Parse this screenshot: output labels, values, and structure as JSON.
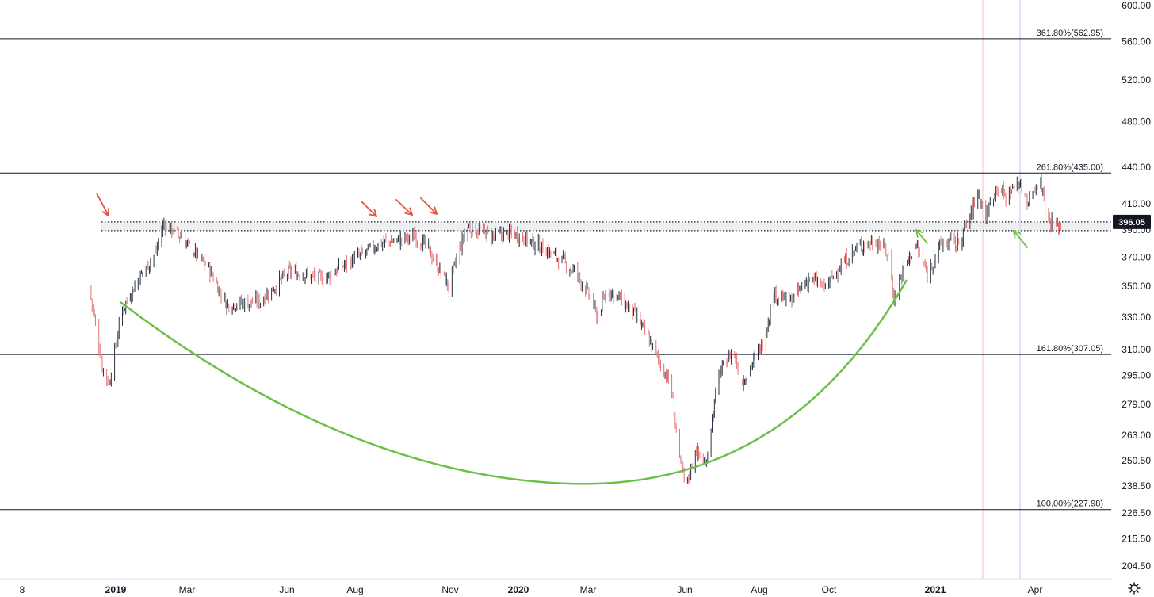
{
  "chart_data": {
    "type": "candlestick",
    "y_axis": {
      "ticks": [
        600.0,
        560.0,
        520.0,
        480.0,
        440.0,
        410.0,
        390.0,
        370.0,
        350.0,
        330.0,
        310.0,
        295.0,
        279.0,
        263.0,
        250.5,
        238.5,
        226.5,
        215.5,
        204.5
      ],
      "tick_labels": [
        "600.00",
        "560.00",
        "520.00",
        "480.00",
        "440.00",
        "410.00",
        "390.00",
        "370.00",
        "350.00",
        "330.00",
        "310.00",
        "295.00",
        "279.00",
        "263.00",
        "250.50",
        "238.50",
        "226.50",
        "215.50",
        "204.50"
      ],
      "scale": "log"
    },
    "x_axis": {
      "tick_labels": [
        "8",
        "2019",
        "Mar",
        "Jun",
        "Aug",
        "Nov",
        "2020",
        "Mar",
        "Jun",
        "Aug",
        "Oct",
        "2021",
        "Apr"
      ],
      "bold_labels": [
        "2019",
        "2020",
        "2021"
      ]
    },
    "fib_levels": [
      {
        "label": "361.80%(562.95)",
        "price": 562.95
      },
      {
        "label": "261.80%(435.00)",
        "price": 435.0
      },
      {
        "label": "161.80%(307.05)",
        "price": 307.05
      },
      {
        "label": "100.00%(227.98)",
        "price": 227.98
      }
    ],
    "resistance_zone": {
      "upper": 396.05,
      "lower": 389.5
    },
    "last_price": {
      "value": 396.05,
      "label": "396.05",
      "color": "#131722"
    },
    "price_series": {
      "anchors_date_price": [
        [
          "2018-12-08",
          350
        ],
        [
          "2018-12-20",
          300
        ],
        [
          "2018-12-26",
          290
        ],
        [
          "2019-01-07",
          335
        ],
        [
          "2019-01-25",
          360
        ],
        [
          "2019-02-05",
          372
        ],
        [
          "2019-02-13",
          395
        ],
        [
          "2019-02-28",
          385
        ],
        [
          "2019-03-25",
          362
        ],
        [
          "2019-04-10",
          338
        ],
        [
          "2019-05-10",
          340
        ],
        [
          "2019-06-05",
          360
        ],
        [
          "2019-07-05",
          355
        ],
        [
          "2019-07-25",
          365
        ],
        [
          "2019-08-25",
          380
        ],
        [
          "2019-09-25",
          385
        ],
        [
          "2019-10-05",
          378
        ],
        [
          "2019-10-25",
          350
        ],
        [
          "2019-11-10",
          392
        ],
        [
          "2019-12-05",
          385
        ],
        [
          "2019-12-20",
          388
        ],
        [
          "2020-01-10",
          380
        ],
        [
          "2020-01-30",
          370
        ],
        [
          "2020-02-15",
          360
        ],
        [
          "2020-03-01",
          340
        ],
        [
          "2020-03-05",
          330
        ],
        [
          "2020-03-15",
          348
        ],
        [
          "2020-03-25",
          342
        ],
        [
          "2020-04-10",
          330
        ],
        [
          "2020-04-25",
          310
        ],
        [
          "2020-05-02",
          300
        ],
        [
          "2020-05-10",
          290
        ],
        [
          "2020-05-18",
          250
        ],
        [
          "2020-05-24",
          238
        ],
        [
          "2020-06-01",
          256
        ],
        [
          "2020-06-10",
          248
        ],
        [
          "2020-06-22",
          295
        ],
        [
          "2020-07-05",
          310
        ],
        [
          "2020-07-12",
          290
        ],
        [
          "2020-07-20",
          300
        ],
        [
          "2020-08-01",
          315
        ],
        [
          "2020-08-10",
          345
        ],
        [
          "2020-08-25",
          340
        ],
        [
          "2020-09-10",
          355
        ],
        [
          "2020-09-25",
          350
        ],
        [
          "2020-10-10",
          365
        ],
        [
          "2020-10-25",
          378
        ],
        [
          "2020-11-10",
          382
        ],
        [
          "2020-11-20",
          372
        ],
        [
          "2020-11-25",
          342
        ],
        [
          "2020-12-05",
          365
        ],
        [
          "2020-12-15",
          378
        ],
        [
          "2020-12-25",
          358
        ],
        [
          "2021-01-05",
          378
        ],
        [
          "2021-01-15",
          382
        ],
        [
          "2021-01-20",
          378
        ],
        [
          "2021-02-01",
          400
        ],
        [
          "2021-02-08",
          420
        ],
        [
          "2021-02-15",
          400
        ],
        [
          "2021-02-25",
          425
        ],
        [
          "2021-03-05",
          415
        ],
        [
          "2021-03-15",
          428
        ],
        [
          "2021-03-25",
          412
        ],
        [
          "2021-04-05",
          432
        ],
        [
          "2021-04-10",
          400
        ],
        [
          "2021-04-20",
          392
        ],
        [
          "2021-04-25",
          395
        ]
      ]
    },
    "colors": {
      "up": "#26323f",
      "down": "#e57373",
      "fib_line": "#131722",
      "cup_curve": "#6cc04a",
      "resistance_arrow": "#e5533d",
      "support_arrow": "#6cc04a"
    }
  }
}
